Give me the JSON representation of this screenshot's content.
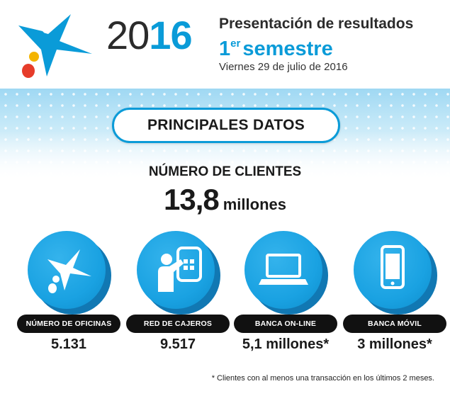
{
  "header": {
    "year_part1": "20",
    "year_part2": "16",
    "title_line1": "Presentación de resultados",
    "title_line2_ordinal": "1",
    "title_line2_sup": "er",
    "title_line2_word": "semestre",
    "date": "Viernes 29 de julio de 2016"
  },
  "section": {
    "title": "PRINCIPALES DATOS"
  },
  "clients": {
    "label": "NÚMERO DE CLIENTES",
    "value": "13,8",
    "unit": "millones"
  },
  "stats": [
    {
      "label": "NÚMERO DE OFICINAS",
      "value": "5.131",
      "icon": "star-logo-icon"
    },
    {
      "label": "RED DE CAJEROS",
      "value": "9.517",
      "icon": "atm-user-icon"
    },
    {
      "label": "BANCA ON-LINE",
      "value": "5,1 millones*",
      "icon": "laptop-icon"
    },
    {
      "label": "BANCA MÓVIL",
      "value": "3 millones*",
      "icon": "smartphone-icon"
    }
  ],
  "footnote": "* Clientes con al menos una transacción en los últimos 2 meses.",
  "colors": {
    "brand_blue": "#0a9bd8",
    "logo_yellow": "#f4b400",
    "logo_red": "#e63c2a",
    "dark": "#111111"
  }
}
